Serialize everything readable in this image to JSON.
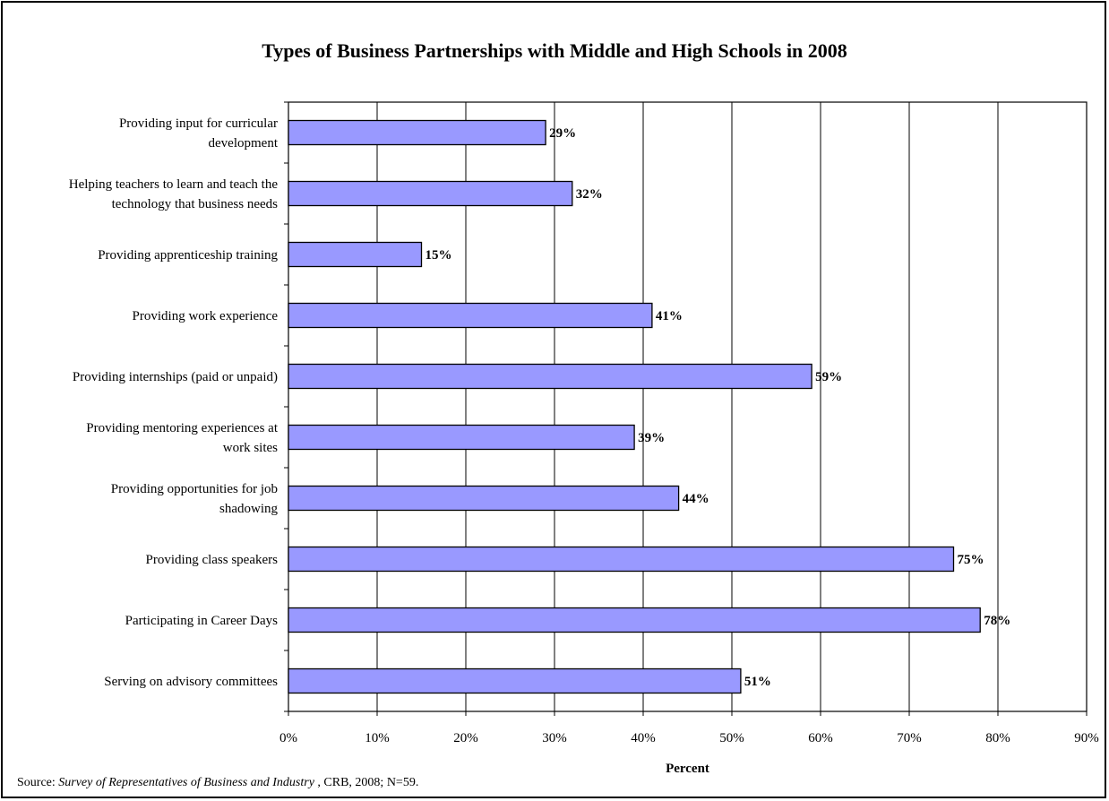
{
  "chart_data": {
    "type": "bar",
    "orientation": "horizontal",
    "title": "Types of Business Partnerships with Middle and High Schools in 2008",
    "xlabel": "Percent",
    "ylabel": "",
    "xlim": [
      0,
      90
    ],
    "xticks": [
      "0%",
      "10%",
      "20%",
      "30%",
      "40%",
      "50%",
      "60%",
      "70%",
      "80%",
      "90%"
    ],
    "grid": "vertical",
    "legend": "none",
    "bar_color": "#9999ff",
    "categories": [
      [
        "Providing input for curricular",
        "development"
      ],
      [
        "Helping teachers to learn and teach the",
        "technology that business needs"
      ],
      [
        "Providing apprenticeship training"
      ],
      [
        "Providing work experience"
      ],
      [
        "Providing internships (paid or unpaid)"
      ],
      [
        "Providing mentoring experiences at",
        "work sites"
      ],
      [
        "Providing opportunities for job",
        "shadowing"
      ],
      [
        "Providing class speakers"
      ],
      [
        "Participating in Career Days"
      ],
      [
        "Serving on advisory committees"
      ]
    ],
    "values": [
      29,
      32,
      15,
      41,
      59,
      39,
      44,
      75,
      78,
      51
    ],
    "data_labels": [
      "29%",
      "32%",
      "15%",
      "41%",
      "59%",
      "39%",
      "44%",
      "75%",
      "78%",
      "51%"
    ]
  },
  "source": {
    "prefix": "Source:  ",
    "title": "Survey of Representatives of Business and Industry",
    "suffix": " , CRB, 2008; N=59."
  }
}
